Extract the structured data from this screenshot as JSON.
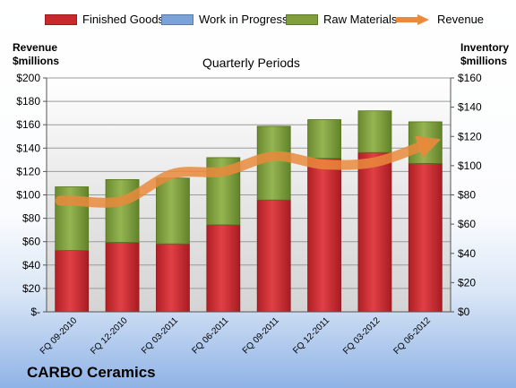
{
  "chart_data": {
    "type": "bar",
    "stacked": true,
    "subtitle": "Quarterly Periods",
    "company": "CARBO Ceramics",
    "left_axis": {
      "title_line1": "Revenue",
      "title_line2": "$millions",
      "range": [
        0,
        200
      ],
      "ticks": [
        "$-",
        "$20",
        "$40",
        "$60",
        "$80",
        "$100",
        "$120",
        "$140",
        "$160",
        "$180",
        "$200"
      ]
    },
    "right_axis": {
      "title_line1": "Inventory",
      "title_line2": "$millions",
      "range": [
        0,
        160
      ],
      "ticks": [
        "$0",
        "$20",
        "$40",
        "$60",
        "$80",
        "$100",
        "$120",
        "$140",
        "$160"
      ]
    },
    "categories": [
      "FQ 09-2010",
      "FQ 12-2010",
      "FQ 03-2011",
      "FQ 06-2011",
      "FQ 09-2011",
      "FQ 12-2011",
      "FQ 03-2012",
      "FQ 06-2012"
    ],
    "series": [
      {
        "name": "Finished Goods",
        "axis": "right",
        "color": "#c9282d",
        "values": [
          42,
          47.5,
          46.5,
          59.5,
          76.5,
          105,
          109,
          101.5
        ]
      },
      {
        "name": "Work in Progress",
        "axis": "right",
        "color": "#7ba3da",
        "values": [
          0,
          0,
          0,
          0,
          0,
          0,
          0,
          0
        ]
      },
      {
        "name": "Raw Materials",
        "axis": "right",
        "color": "#7e9f3c",
        "values": [
          43.5,
          43,
          45,
          46,
          50.5,
          26.5,
          28.5,
          28.5
        ]
      },
      {
        "name": "Revenue",
        "axis": "left",
        "type": "line",
        "color": "#e98a3c",
        "values": [
          95,
          95,
          118,
          120,
          133,
          126,
          128,
          143
        ]
      }
    ],
    "legend_position": "top",
    "grid": true
  }
}
